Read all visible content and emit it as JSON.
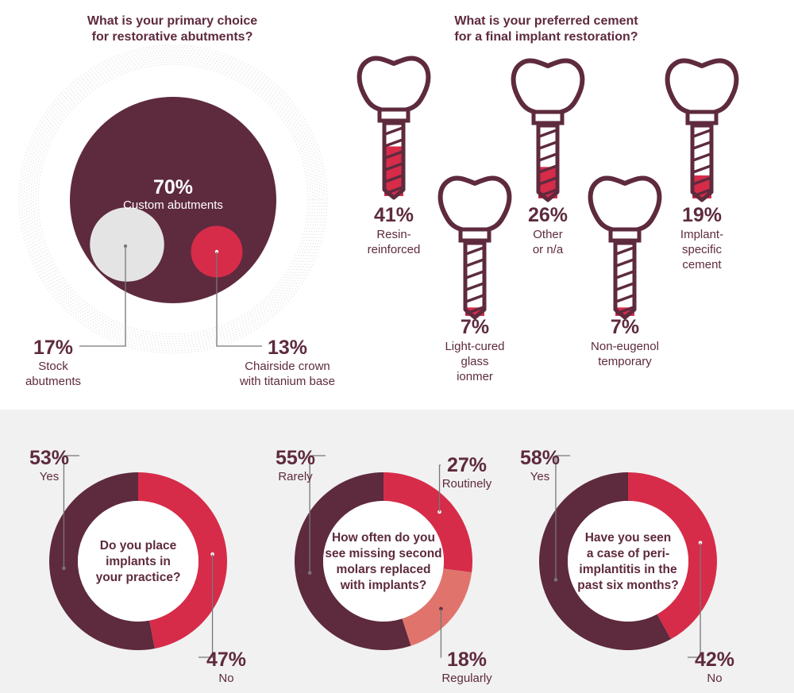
{
  "colors": {
    "maroon": "#5e2a3e",
    "red": "#d62c49",
    "salmon": "#e0746c",
    "light_gray": "#e4e4e4",
    "ring_gray": "#dddddd",
    "panel_bg": "#f1f1f1",
    "white": "#ffffff"
  },
  "chart_data": [
    {
      "type": "pie",
      "title": "What is your primary choice for restorative abutments?",
      "title_lines": [
        "What is your primary choice",
        "for restorative abutments?"
      ],
      "slices": [
        {
          "label_lines": [
            "Custom abutments"
          ],
          "value": 70,
          "display": "70%",
          "color": "#5e2a3e"
        },
        {
          "label_lines": [
            "Stock",
            "abutments"
          ],
          "value": 17,
          "display": "17%",
          "color": "#e4e4e4"
        },
        {
          "label_lines": [
            "Chairside crown",
            "with titanium base"
          ],
          "value": 13,
          "display": "13%",
          "color": "#d62c49"
        }
      ]
    },
    {
      "type": "bar",
      "title": "What is your preferred cement for a final implant restoration?",
      "title_lines": [
        "What is your preferred cement",
        "for a final implant restoration?"
      ],
      "categories": [
        {
          "label_lines": [
            "Resin-",
            "reinforced"
          ],
          "value": 41,
          "display": "41%"
        },
        {
          "label_lines": [
            "Light-cured",
            "glass",
            "ionmer"
          ],
          "value": 7,
          "display": "7%"
        },
        {
          "label_lines": [
            "Other",
            "or n/a"
          ],
          "value": 26,
          "display": "26%"
        },
        {
          "label_lines": [
            "Non-eugenol",
            "temporary"
          ],
          "value": 7,
          "display": "7%"
        },
        {
          "label_lines": [
            "Implant-",
            "specific",
            "cement"
          ],
          "value": 19,
          "display": "19%"
        }
      ]
    },
    {
      "type": "pie",
      "title": "Do you place implants in your practice?",
      "question_lines": [
        "Do you place",
        "implants in",
        "your practice?"
      ],
      "slices": [
        {
          "label": "Yes",
          "value": 53,
          "display": "53%",
          "color": "#5e2a3e"
        },
        {
          "label": "No",
          "value": 47,
          "display": "47%",
          "color": "#d62c49"
        }
      ]
    },
    {
      "type": "pie",
      "title": "How often do you see missing second molars replaced with implants?",
      "question_lines": [
        "How often do you",
        "see missing second",
        "molars replaced",
        "with implants?"
      ],
      "slices": [
        {
          "label": "Rarely",
          "value": 55,
          "display": "55%",
          "color": "#5e2a3e"
        },
        {
          "label": "Routinely",
          "value": 27,
          "display": "27%",
          "color": "#d62c49"
        },
        {
          "label": "Regularly",
          "value": 18,
          "display": "18%",
          "color": "#e0746c"
        }
      ]
    },
    {
      "type": "pie",
      "title": "Have you seen a case of peri-implantitis in the past six months?",
      "question_lines": [
        "Have you seen",
        "a case of peri-",
        "implantitis in the",
        "past six months?"
      ],
      "slices": [
        {
          "label": "Yes",
          "value": 58,
          "display": "58%",
          "color": "#5e2a3e"
        },
        {
          "label": "No",
          "value": 42,
          "display": "42%",
          "color": "#d62c49"
        }
      ]
    }
  ]
}
